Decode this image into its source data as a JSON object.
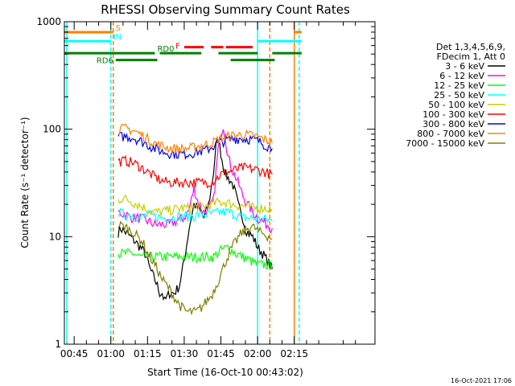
{
  "chart_data": {
    "type": "line",
    "title": "RHESSI Observing Summary Count Rates",
    "xlabel": "Start Time (16-Oct-10 00:43:02)",
    "ylabel": "Count Rate (s⁻¹ detector⁻¹)",
    "y_scale": "log",
    "ylim": [
      1,
      1000
    ],
    "xlim_minutes": [
      41,
      168
    ],
    "x_ticks": [
      {
        "m": 45,
        "label": "00:45"
      },
      {
        "m": 60,
        "label": "01:00"
      },
      {
        "m": 75,
        "label": "01:15"
      },
      {
        "m": 90,
        "label": "01:30"
      },
      {
        "m": 105,
        "label": "01:45"
      },
      {
        "m": 120,
        "label": "02:00"
      },
      {
        "m": 135,
        "label": "02:15"
      }
    ],
    "y_ticks": [
      {
        "v": 1,
        "label": "1"
      },
      {
        "v": 10,
        "label": "10"
      },
      {
        "v": 100,
        "label": "100"
      },
      {
        "v": 1000,
        "label": "1000"
      }
    ],
    "legend_header": [
      "Det 1,3,4,5,6,9,",
      "FDecim 1, Att 0"
    ],
    "series": [
      {
        "name": "3 - 6 keV",
        "color": "#000000",
        "x": [
          63,
          64,
          66,
          68,
          70,
          72,
          74,
          76,
          78,
          79,
          80,
          81,
          82,
          84,
          86,
          88,
          90,
          92,
          94,
          96,
          98,
          100,
          101,
          102,
          103,
          104,
          105,
          106,
          107,
          108,
          109,
          110,
          111,
          112,
          113,
          114,
          115,
          116,
          118,
          120,
          122,
          124,
          126
        ],
        "y": [
          11,
          12,
          11,
          10,
          9,
          8,
          7,
          5,
          4,
          3.5,
          3,
          3,
          2.5,
          3,
          3,
          3.5,
          6,
          12,
          20,
          18,
          15,
          20,
          28,
          40,
          70,
          80,
          60,
          45,
          38,
          35,
          33,
          30,
          25,
          20,
          17,
          15,
          12,
          11,
          10,
          8,
          7,
          6,
          5
        ]
      },
      {
        "name": "6 - 12 keV",
        "color": "#ff00ff",
        "x": [
          63,
          66,
          69,
          72,
          75,
          78,
          81,
          84,
          87,
          90,
          92,
          94,
          96,
          98,
          100,
          102,
          104,
          106,
          108,
          110,
          112,
          114,
          116,
          118,
          120,
          122,
          124,
          126
        ],
        "y": [
          17,
          16,
          15,
          15,
          14,
          13,
          13,
          13,
          14,
          15,
          18,
          28,
          20,
          17,
          18,
          22,
          70,
          110,
          55,
          40,
          32,
          24,
          20,
          17,
          15,
          14,
          13,
          12
        ]
      },
      {
        "name": "12 - 25 keV",
        "color": "#00ff00",
        "x": [
          63,
          66,
          69,
          72,
          75,
          78,
          81,
          84,
          87,
          90,
          93,
          96,
          99,
          102,
          105,
          108,
          111,
          114,
          117,
          120,
          123,
          126
        ],
        "y": [
          7,
          7,
          7,
          6.5,
          6.5,
          6.5,
          6.5,
          6.5,
          6.5,
          6.5,
          6.5,
          6.5,
          6.5,
          6.5,
          7.5,
          8,
          7,
          6.5,
          6,
          5.5,
          5.5,
          5.5
        ]
      },
      {
        "name": "25 - 50 keV",
        "color": "#00ffff",
        "x": [
          63,
          66,
          69,
          72,
          75,
          78,
          81,
          84,
          87,
          90,
          93,
          96,
          99,
          102,
          105,
          108,
          111,
          114,
          117,
          120,
          123,
          126
        ],
        "y": [
          17,
          16,
          16,
          15,
          16,
          15.5,
          15,
          15,
          15.5,
          15.5,
          15.5,
          16,
          16,
          16.5,
          17,
          17,
          16,
          15,
          15,
          14.5,
          14.5,
          14
        ]
      },
      {
        "name": "50 - 100 keV",
        "color": "#cccc00",
        "x": [
          63,
          65,
          67,
          69,
          71,
          73,
          75,
          77,
          80,
          83,
          86,
          89,
          92,
          95,
          98,
          101,
          104,
          107,
          110,
          113,
          116,
          119,
          122,
          126
        ],
        "y": [
          22,
          23,
          22,
          21,
          20,
          19,
          18,
          17,
          17,
          17.5,
          18,
          18.5,
          18.5,
          19,
          19,
          20,
          21,
          21,
          20,
          19.5,
          19,
          18.5,
          18.5,
          18
        ]
      },
      {
        "name": "100 - 300 keV",
        "color": "#ff0000",
        "x": [
          63,
          66,
          69,
          72,
          75,
          78,
          81,
          84,
          87,
          90,
          93,
          96,
          99,
          102,
          105,
          108,
          111,
          114,
          117,
          120,
          123,
          126
        ],
        "y": [
          50,
          51,
          49,
          45,
          40,
          36,
          33,
          32,
          32,
          32,
          32,
          32,
          32,
          33,
          38,
          40,
          42,
          44,
          43,
          42,
          40,
          38
        ]
      },
      {
        "name": "300 - 800 keV",
        "color": "#0000ff",
        "x": [
          63,
          66,
          69,
          72,
          75,
          78,
          81,
          84,
          87,
          90,
          93,
          96,
          99,
          102,
          105,
          108,
          111,
          114,
          117,
          120,
          123,
          126
        ],
        "y": [
          85,
          86,
          84,
          78,
          72,
          66,
          62,
          60,
          59,
          59,
          60,
          62,
          64,
          70,
          76,
          80,
          82,
          82,
          81,
          78,
          72,
          66
        ]
      },
      {
        "name": "800 - 7000 keV",
        "color": "#ff8000",
        "x": [
          63,
          66,
          69,
          72,
          75,
          78,
          81,
          84,
          87,
          90,
          93,
          96,
          99,
          102,
          105,
          108,
          111,
          114,
          117,
          120,
          123,
          126
        ],
        "y": [
          100,
          102,
          98,
          90,
          82,
          74,
          70,
          67,
          66,
          66,
          67,
          70,
          72,
          76,
          82,
          86,
          88,
          89,
          88,
          85,
          80,
          75
        ]
      },
      {
        "name": "7000 - 15000 keV",
        "color": "#808000",
        "x": [
          63,
          65,
          67,
          69,
          71,
          73,
          75,
          77,
          79,
          81,
          83,
          85,
          87,
          89,
          91,
          93,
          95,
          97,
          99,
          101,
          103,
          105,
          107,
          109,
          111,
          113,
          115,
          117,
          119,
          121,
          123,
          125,
          126
        ],
        "y": [
          13,
          12.5,
          12,
          11,
          10,
          9,
          7,
          6,
          5,
          4,
          3.5,
          3,
          2.5,
          2.2,
          2,
          2,
          2,
          2.2,
          2.5,
          2.8,
          3.5,
          4.5,
          6,
          7.5,
          9,
          10.5,
          11.5,
          12.5,
          12,
          11,
          10.5,
          10,
          9.5
        ]
      }
    ],
    "vertical_lines": [
      {
        "m": 42,
        "style": "solid",
        "color": "#00ffff"
      },
      {
        "m": 60,
        "style": "dashed",
        "color": "#00ffff"
      },
      {
        "m": 61,
        "style": "dashed",
        "color": "#ff8000"
      },
      {
        "m": 120,
        "style": "solid",
        "color": "#00ffff"
      },
      {
        "m": 125,
        "style": "dashed",
        "color": "#ff8000"
      },
      {
        "m": 135,
        "style": "solid",
        "color": "#ff8000"
      },
      {
        "m": 137,
        "style": "dashed",
        "color": "#00ffff"
      }
    ],
    "flag_bars": [
      {
        "label": "S",
        "color": "#ff8000",
        "level": 800,
        "segments": [
          [
            41,
            61
          ],
          [
            135,
            138
          ]
        ]
      },
      {
        "label": "IN",
        "color": "#00ffff",
        "level": 660,
        "segments": [
          [
            41,
            60
          ],
          [
            120,
            138
          ]
        ]
      },
      {
        "label": "F",
        "color": "#ff0000",
        "level": 580,
        "segments": [
          [
            90,
            98
          ],
          [
            101,
            106
          ],
          [
            107,
            118
          ]
        ]
      },
      {
        "label": "RD0",
        "color": "#008000",
        "level": 510,
        "segments": [
          [
            41,
            78
          ],
          [
            80,
            97
          ],
          [
            104,
            120
          ],
          [
            126,
            138
          ]
        ]
      },
      {
        "label": "RD6",
        "color": "#008000",
        "level": 440,
        "segments": [
          [
            62,
            79
          ],
          [
            109,
            127
          ]
        ]
      }
    ]
  },
  "timestamp": "16-Oct-2021 17:06"
}
